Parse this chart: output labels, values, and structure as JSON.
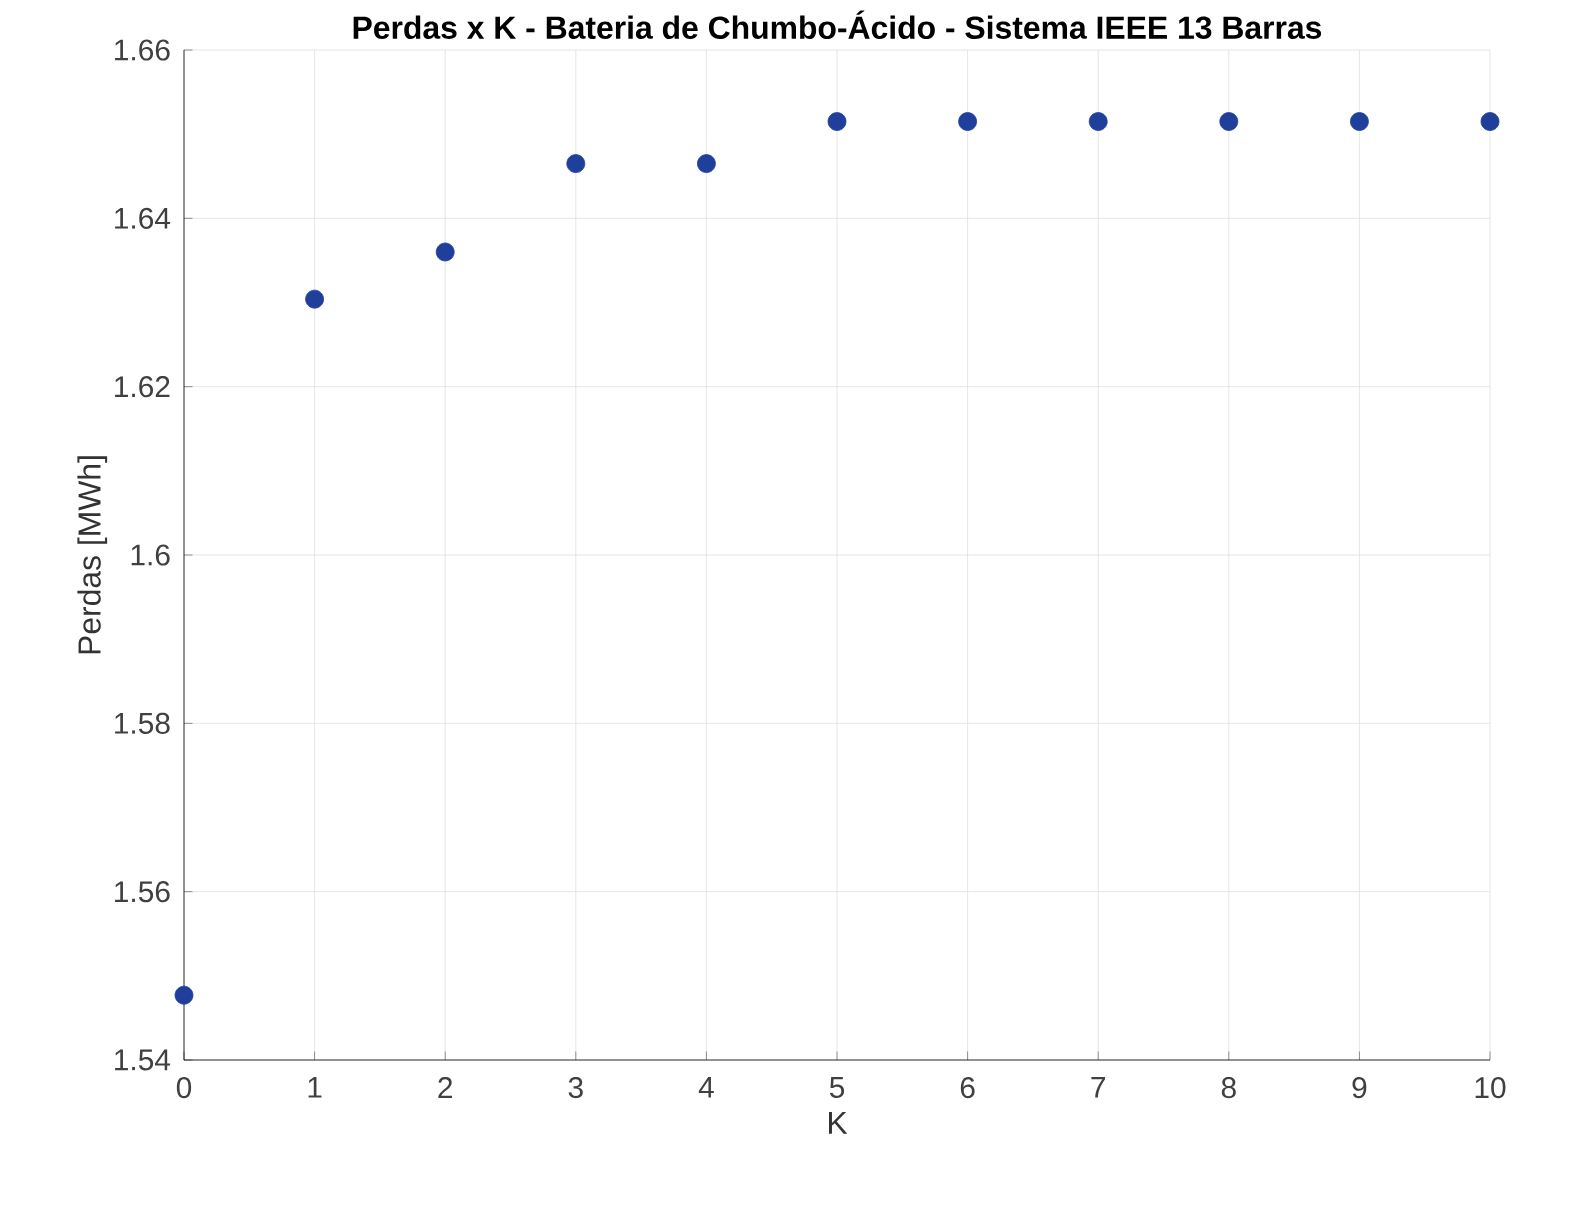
{
  "chart_data": {
    "type": "scatter",
    "title": "Perdas x K - Bateria de Chumbo-Ácido - Sistema IEEE 13 Barras",
    "xlabel": "K",
    "ylabel": "Perdas [MWh]",
    "x": [
      0,
      1,
      2,
      3,
      4,
      5,
      6,
      7,
      8,
      9,
      10
    ],
    "values": [
      1.5477,
      1.6304,
      1.636,
      1.6465,
      1.6465,
      1.6515,
      1.6515,
      1.6515,
      1.6515,
      1.6515,
      1.6515
    ],
    "color": "#1f3f9a",
    "marker": "circle",
    "grid": true,
    "xlim": [
      0,
      10
    ],
    "xticks": [
      0,
      1,
      2,
      3,
      4,
      5,
      6,
      7,
      8,
      9,
      10
    ],
    "ylim": [
      1.54,
      1.66
    ],
    "yticks": [
      1.54,
      1.56,
      1.58,
      1.6,
      1.62,
      1.64,
      1.66
    ]
  }
}
